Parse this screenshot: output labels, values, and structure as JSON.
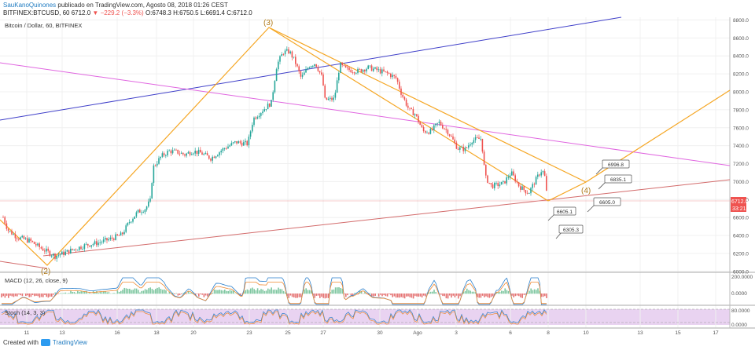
{
  "header": {
    "author": "SauKanoQuinones",
    "published": "publicado en TradingView.com, Agosto 08, 2018 01:26 CEST",
    "symbol": "BITFINEX:BTCUSD, 60",
    "last": "6712.0",
    "change_arrow": "▼",
    "change": "−229.2 (−3.3%)",
    "open": "O:6748.3",
    "high": "H:6750.5",
    "low": "L:6691.4",
    "close": "C:6712.0"
  },
  "pane_title": "Bitcoin / Dollar, 60, BITFINEX",
  "colors": {
    "up": "#26a69a",
    "down": "#ef5350",
    "elliott": "#f5a623",
    "channel_blue": "#3f3fc9",
    "magenta": "#e066e0",
    "support": "#d36b6b",
    "price_tag": "#ef5350",
    "stoch_bg": "#e9d3f1"
  },
  "chart_data": {
    "type": "candlestick",
    "title": "Bitcoin / Dollar, 60, BITFINEX",
    "x_ticks": [
      "11",
      "13",
      "16",
      "18",
      "20",
      "23",
      "25",
      "27",
      "30",
      "Ago",
      "3",
      "6",
      "8",
      "10",
      "13",
      "15",
      "17"
    ],
    "y_ticks": [
      "8800.0",
      "8600.0",
      "8400.0",
      "8200.0",
      "8000.0",
      "7800.0",
      "7600.0",
      "7400.0",
      "7200.0",
      "7000.0",
      "6800.0",
      "6600.0",
      "6400.0",
      "6200.0",
      "6000.0"
    ],
    "ylim": [
      5990,
      8830
    ],
    "price_path": [
      [
        0,
        6700
      ],
      [
        10,
        6460
      ],
      [
        22,
        6380
      ],
      [
        38,
        6340
      ],
      [
        52,
        6260
      ],
      [
        64,
        6200
      ],
      [
        70,
        6170
      ],
      [
        80,
        6200
      ],
      [
        92,
        6240
      ],
      [
        108,
        6290
      ],
      [
        125,
        6320
      ],
      [
        140,
        6360
      ],
      [
        155,
        6410
      ],
      [
        165,
        6560
      ],
      [
        175,
        6660
      ],
      [
        185,
        6700
      ],
      [
        192,
        6800
      ],
      [
        194,
        7150
      ],
      [
        205,
        7280
      ],
      [
        215,
        7340
      ],
      [
        225,
        7330
      ],
      [
        235,
        7300
      ],
      [
        245,
        7340
      ],
      [
        255,
        7320
      ],
      [
        268,
        7260
      ],
      [
        285,
        7370
      ],
      [
        300,
        7440
      ],
      [
        315,
        7420
      ],
      [
        322,
        7700
      ],
      [
        332,
        7780
      ],
      [
        345,
        7880
      ],
      [
        352,
        8300
      ],
      [
        360,
        8440
      ],
      [
        368,
        8450
      ],
      [
        375,
        8340
      ],
      [
        383,
        8150
      ],
      [
        393,
        8290
      ],
      [
        401,
        8320
      ],
      [
        410,
        8150
      ],
      [
        413,
        7910
      ],
      [
        425,
        7920
      ],
      [
        432,
        8300
      ],
      [
        440,
        8250
      ],
      [
        455,
        8230
      ],
      [
        468,
        8270
      ],
      [
        480,
        8240
      ],
      [
        494,
        8200
      ],
      [
        504,
        8150
      ],
      [
        510,
        7990
      ],
      [
        520,
        7800
      ],
      [
        528,
        7750
      ],
      [
        538,
        7560
      ],
      [
        548,
        7560
      ],
      [
        558,
        7660
      ],
      [
        570,
        7550
      ],
      [
        582,
        7370
      ],
      [
        592,
        7360
      ],
      [
        600,
        7460
      ],
      [
        612,
        7480
      ],
      [
        617,
        7050
      ],
      [
        625,
        6950
      ],
      [
        640,
        6980
      ],
      [
        650,
        7100
      ],
      [
        660,
        6950
      ],
      [
        672,
        6870
      ],
      [
        680,
        7000
      ],
      [
        688,
        7120
      ],
      [
        692,
        7100
      ],
      [
        697,
        6712
      ]
    ],
    "indicators": {
      "macd": {
        "label": "MACD (12, 26, close, 9)",
        "y_ticks": [
          "200.0000",
          "0.0000"
        ]
      },
      "stoch": {
        "label": "Stoch (14, 3, 3)",
        "y_ticks": [
          "80.0000",
          "0.0000"
        ]
      }
    },
    "annotations": {
      "wave_labels": [
        "(2)",
        "(3)",
        "(4)"
      ],
      "price_boxes": [
        "6996.8",
        "6835.1",
        "6605.0",
        "6605.1",
        "6305.3"
      ],
      "current_price": "6712.0",
      "countdown": "33:21"
    }
  },
  "footer": {
    "created_with": "Created with",
    "brand": "TradingView"
  }
}
